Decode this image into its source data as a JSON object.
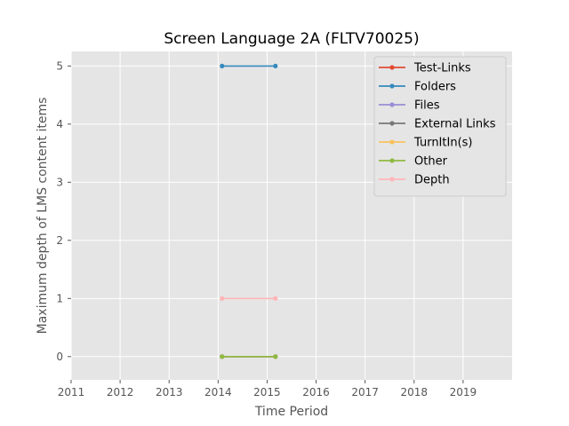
{
  "chart_data": {
    "type": "line",
    "title": "Screen Language 2A (FLTV70025)",
    "xlabel": "Time Period",
    "ylabel": "Maximum depth of LMS content items",
    "xlim": [
      2011,
      2020
    ],
    "ylim": [
      -0.4,
      5.25
    ],
    "xticks": [
      2011,
      2012,
      2013,
      2014,
      2015,
      2016,
      2017,
      2018,
      2019
    ],
    "yticks": [
      0,
      1,
      2,
      3,
      4,
      5
    ],
    "grid": true,
    "legend_position": "top-right",
    "series": [
      {
        "name": "Test-Links",
        "color": "#E24A33",
        "x": [
          2014.08,
          2015.17
        ],
        "y": [
          0,
          0
        ]
      },
      {
        "name": "Folders",
        "color": "#348ABD",
        "x": [
          2014.08,
          2015.17
        ],
        "y": [
          5,
          5
        ]
      },
      {
        "name": "Files",
        "color": "#988ED5",
        "x": [
          2014.08,
          2015.17
        ],
        "y": [
          0,
          0
        ]
      },
      {
        "name": "External Links",
        "color": "#777777",
        "x": [
          2014.08,
          2015.17
        ],
        "y": [
          0,
          0
        ]
      },
      {
        "name": "TurnItIn(s)",
        "color": "#FBC15E",
        "x": [
          2014.08,
          2015.17
        ],
        "y": [
          0,
          0
        ]
      },
      {
        "name": "Other",
        "color": "#8EBA42",
        "x": [
          2014.08,
          2015.17
        ],
        "y": [
          0,
          0
        ]
      },
      {
        "name": "Depth",
        "color": "#FFB5B8",
        "x": [
          2014.08,
          2015.17
        ],
        "y": [
          1,
          1
        ]
      }
    ]
  }
}
